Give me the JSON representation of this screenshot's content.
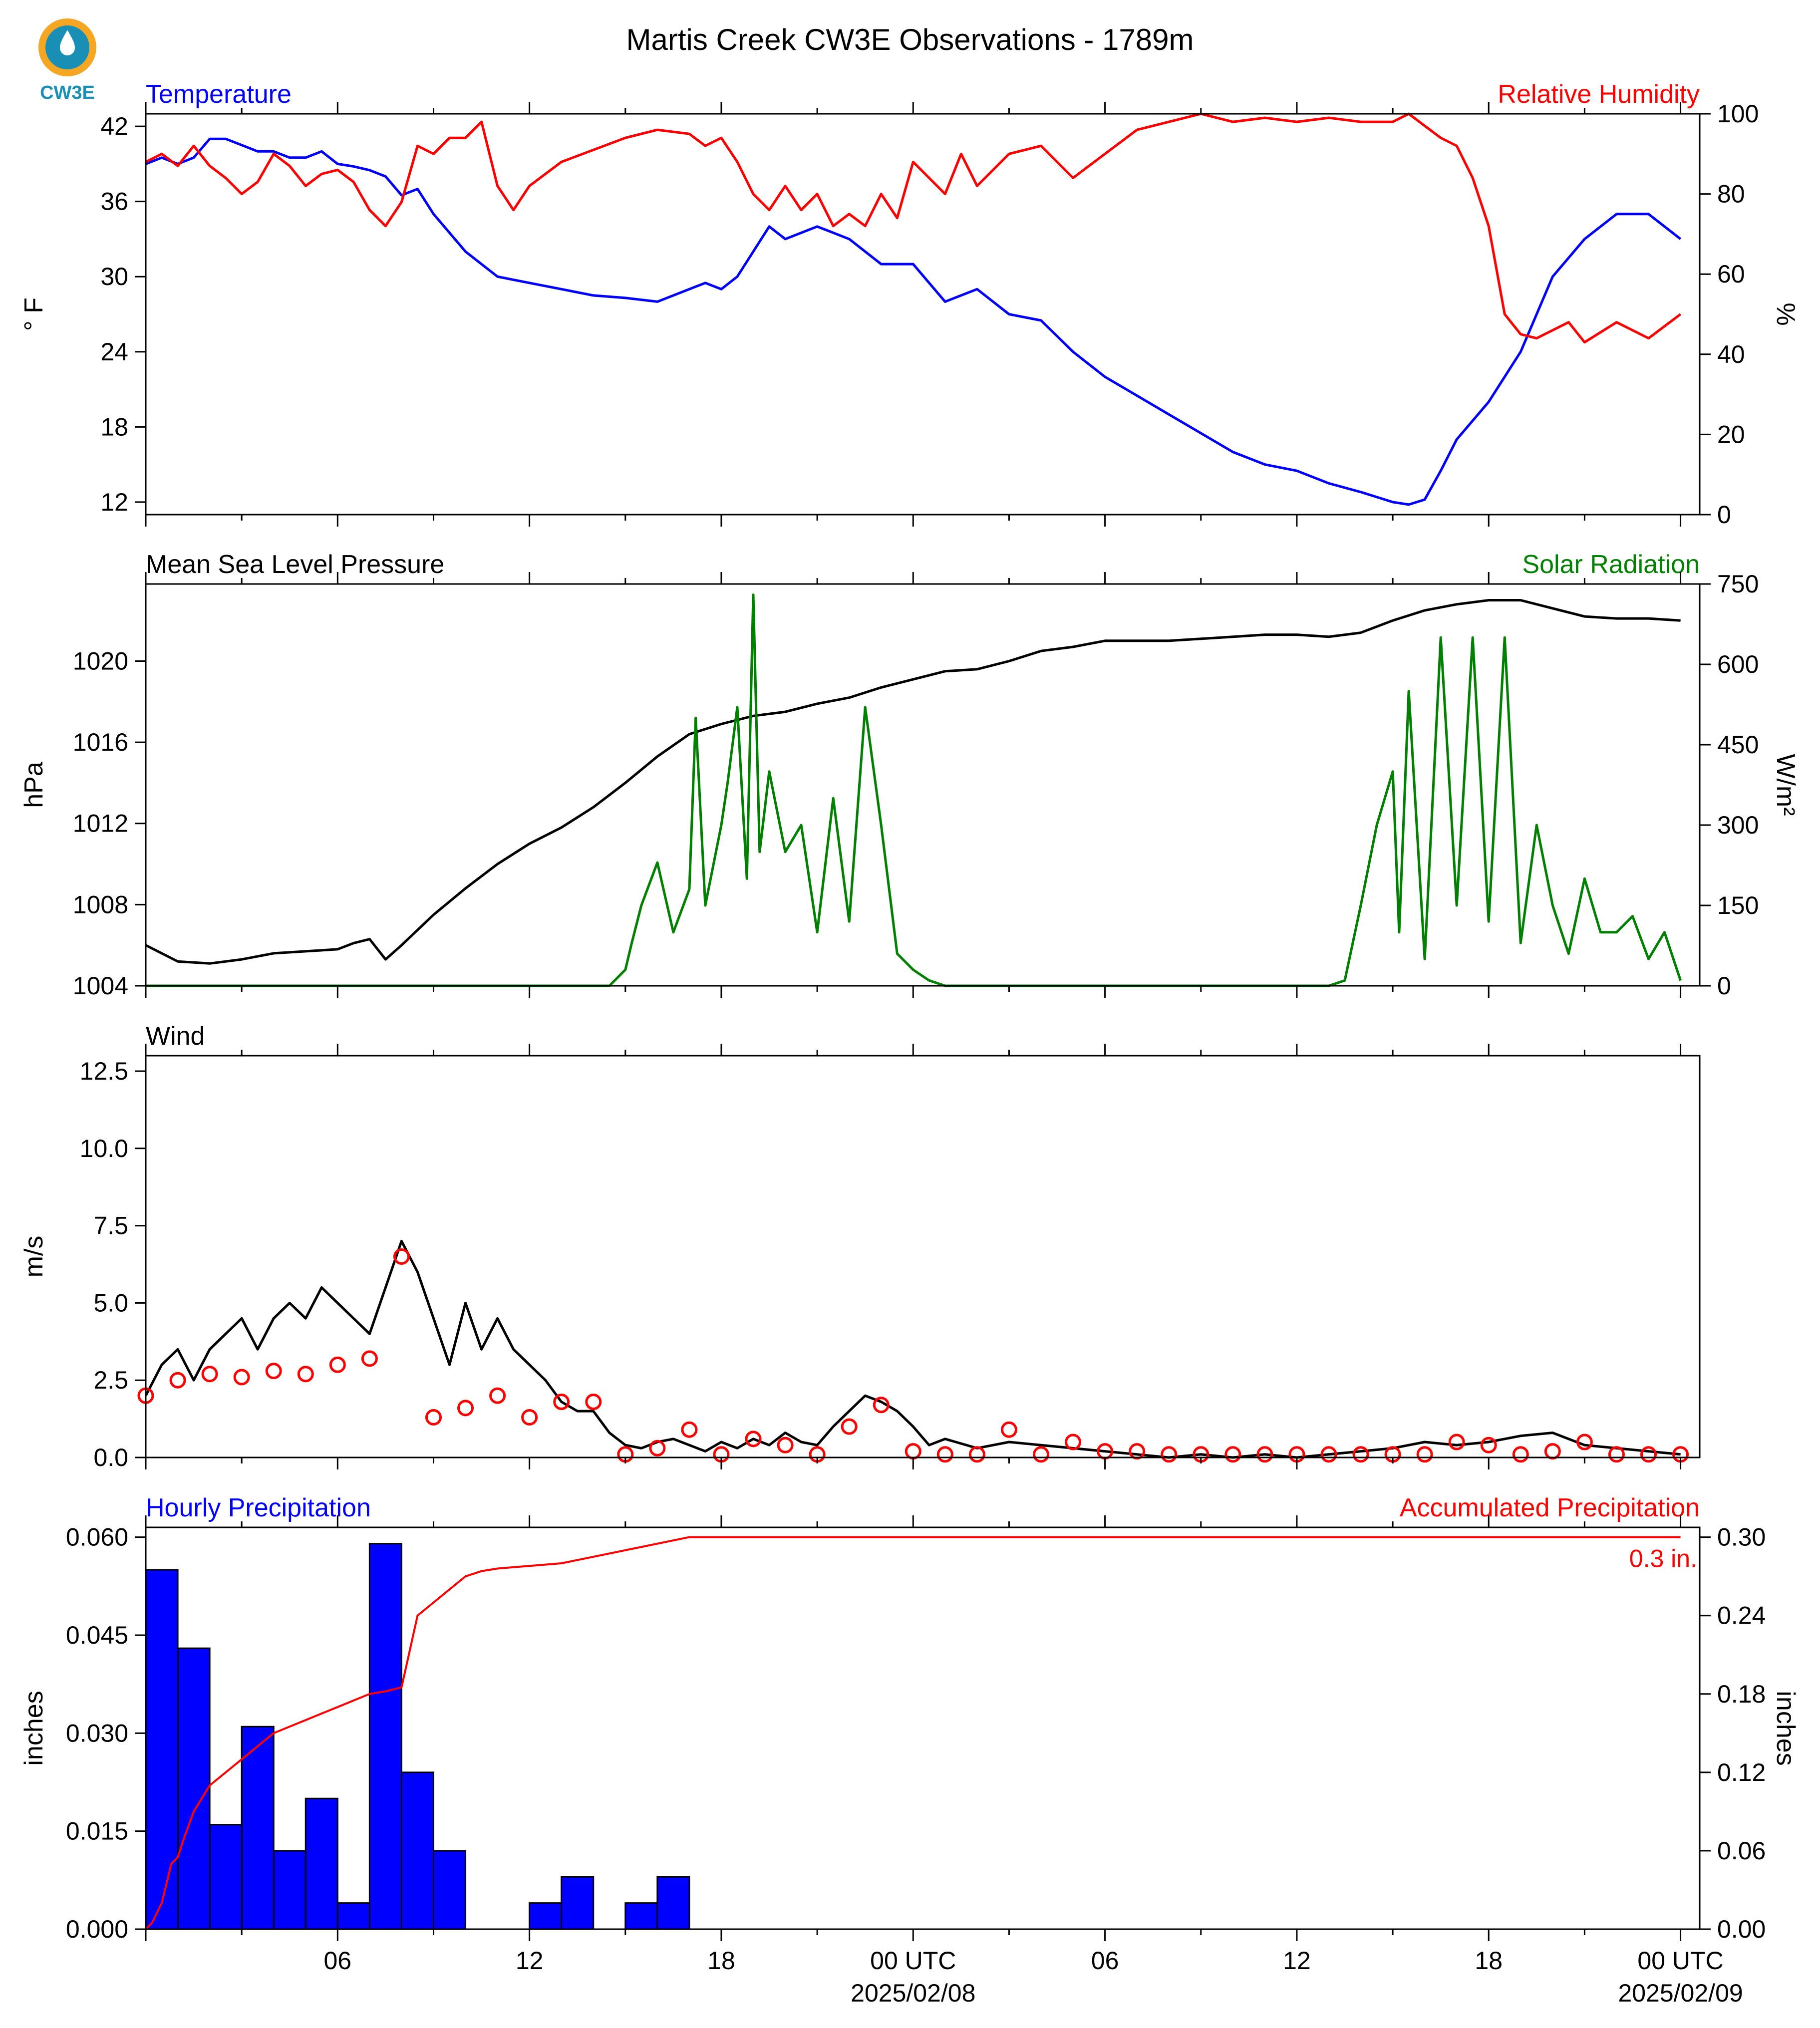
{
  "title": "Martis Creek CW3E Observations - 1789m",
  "logo": {
    "text": "CW3E",
    "colors": {
      "sun": "#f5a623",
      "water": "#1a8fb5"
    }
  },
  "colors": {
    "blue": "#0000ff",
    "red": "#ff0000",
    "green": "#008000",
    "black": "#000000"
  },
  "x_axis": {
    "hour_ticks": [
      "06",
      "12",
      "18",
      "00 UTC",
      "06",
      "12",
      "18",
      "00 UTC"
    ],
    "date_labels": [
      "2025/02/08",
      "2025/02/09"
    ]
  },
  "chart_data": [
    {
      "type": "line",
      "panel": "temperature-humidity",
      "title_left": "Temperature",
      "title_right": "Relative Humidity",
      "ylabel_left": "° F",
      "ylabel_right": "%",
      "ylim_left": [
        11,
        43
      ],
      "ylim_right": [
        0,
        100
      ],
      "yticks_left": [
        "12",
        "18",
        "24",
        "30",
        "36",
        "42"
      ],
      "yticks_right": [
        "0",
        "20",
        "40",
        "60",
        "80",
        "100"
      ],
      "series": [
        {
          "axis": "left",
          "color": "#0000ff",
          "x": [
            0,
            0.5,
            1,
            1.5,
            2,
            2.5,
            3,
            3.5,
            4,
            4.5,
            5,
            5.5,
            6,
            6.5,
            7,
            7.5,
            8,
            8.5,
            9,
            9.5,
            10,
            11,
            12,
            13,
            14,
            15,
            16,
            17,
            17.5,
            18,
            18.5,
            19,
            19.5,
            20,
            21,
            22,
            23,
            24,
            25,
            26,
            27,
            28,
            29,
            30,
            31,
            32,
            33,
            34,
            35,
            36,
            37,
            38,
            39,
            39.5,
            40,
            40.5,
            41,
            42,
            43,
            44,
            45,
            46,
            47,
            48
          ],
          "values": [
            39,
            39.5,
            39,
            39.5,
            41,
            41,
            40.5,
            40,
            40,
            39.5,
            39.5,
            40,
            39,
            38.8,
            38.5,
            38,
            36.5,
            37,
            35,
            33.5,
            32,
            30,
            29.5,
            29,
            28.5,
            28.3,
            28,
            29,
            29.5,
            29,
            30,
            32,
            34,
            33,
            34,
            33,
            31,
            31,
            28,
            29,
            27,
            26.5,
            24,
            22,
            20.5,
            19,
            17.5,
            16,
            15,
            14.5,
            13.5,
            12.8,
            12,
            11.8,
            12.2,
            14.5,
            17,
            20,
            24,
            30,
            33,
            35,
            35,
            33
          ]
        },
        {
          "axis": "right",
          "color": "#ff0000",
          "x": [
            0,
            0.5,
            1,
            1.5,
            2,
            2.5,
            3,
            3.5,
            4,
            4.5,
            5,
            5.5,
            6,
            6.5,
            7,
            7.5,
            8,
            8.5,
            9,
            9.5,
            10,
            10.5,
            11,
            11.5,
            12,
            13,
            14,
            15,
            16,
            17,
            17.5,
            18,
            18.5,
            19,
            19.5,
            20,
            20.5,
            21,
            21.5,
            22,
            22.5,
            23,
            23.5,
            24,
            24.5,
            25,
            25.5,
            26,
            27,
            28,
            29,
            30,
            31,
            32,
            33,
            34,
            35,
            36,
            37,
            38,
            39,
            39.5,
            40,
            40.5,
            41,
            41.5,
            42,
            42.5,
            43,
            43.5,
            44,
            44.5,
            45,
            46,
            47,
            48
          ],
          "values": [
            88,
            90,
            87,
            92,
            87,
            84,
            80,
            83,
            90,
            87,
            82,
            85,
            86,
            83,
            76,
            72,
            78,
            92,
            90,
            94,
            94,
            98,
            82,
            76,
            82,
            88,
            91,
            94,
            96,
            95,
            92,
            94,
            88,
            80,
            76,
            82,
            76,
            80,
            72,
            75,
            72,
            80,
            74,
            88,
            84,
            80,
            90,
            82,
            90,
            92,
            84,
            90,
            96,
            98,
            100,
            98,
            99,
            98,
            99,
            98,
            98,
            100,
            97,
            94,
            92,
            84,
            72,
            50,
            45,
            44,
            46,
            48,
            43,
            48,
            44,
            50
          ]
        }
      ]
    },
    {
      "type": "line",
      "panel": "pressure-solar",
      "title_left": "Mean Sea Level Pressure",
      "title_right": "Solar Radiation",
      "ylabel_left": "hPa",
      "ylabel_right": "W/m²",
      "ylim_left": [
        1004,
        1023.8
      ],
      "ylim_right": [
        0,
        750
      ],
      "yticks_left": [
        "1004",
        "1008",
        "1012",
        "1016",
        "1020"
      ],
      "yticks_right": [
        "0",
        "150",
        "300",
        "450",
        "600",
        "750"
      ],
      "series": [
        {
          "axis": "left",
          "color": "#000000",
          "x": [
            0,
            1,
            2,
            3,
            4,
            5,
            6,
            6.5,
            7,
            7.5,
            8,
            9,
            10,
            11,
            12,
            13,
            14,
            15,
            16,
            17,
            18,
            19,
            20,
            21,
            22,
            23,
            24,
            25,
            26,
            27,
            28,
            29,
            30,
            31,
            32,
            33,
            34,
            35,
            36,
            37,
            38,
            39,
            40,
            41,
            42,
            43,
            44,
            45,
            46,
            47,
            48
          ],
          "values": [
            1006,
            1005.2,
            1005.1,
            1005.3,
            1005.6,
            1005.7,
            1005.8,
            1006.1,
            1006.3,
            1005.3,
            1006.0,
            1007.5,
            1008.8,
            1010.0,
            1011.0,
            1011.8,
            1012.8,
            1014.0,
            1015.3,
            1016.4,
            1016.9,
            1017.3,
            1017.5,
            1017.9,
            1018.2,
            1018.7,
            1019.1,
            1019.5,
            1019.6,
            1020.0,
            1020.5,
            1020.7,
            1021.0,
            1021.0,
            1021.0,
            1021.1,
            1021.2,
            1021.3,
            1021.3,
            1021.2,
            1021.4,
            1022.0,
            1022.5,
            1022.8,
            1023.0,
            1023.0,
            1022.6,
            1022.2,
            1022.1,
            1022.1,
            1022.0
          ]
        },
        {
          "axis": "right",
          "color": "#008000",
          "x": [
            0,
            14,
            14.5,
            15,
            15.2,
            15.5,
            16,
            16.5,
            17,
            17.2,
            17.5,
            18,
            18.2,
            18.5,
            18.8,
            19,
            19.2,
            19.5,
            20,
            20.5,
            21,
            21.5,
            22,
            22.5,
            23,
            23.5,
            24,
            24.5,
            25,
            26,
            36,
            37,
            37.5,
            38,
            38.5,
            39,
            39.2,
            39.5,
            40,
            40.5,
            41,
            41.5,
            42,
            42.5,
            43,
            43.5,
            44,
            44.5,
            45,
            45.5,
            46,
            46.5,
            47,
            47.5,
            48
          ],
          "values": [
            0,
            0,
            0,
            30,
            80,
            150,
            230,
            100,
            180,
            500,
            150,
            300,
            380,
            520,
            200,
            730,
            250,
            400,
            250,
            300,
            100,
            350,
            120,
            520,
            300,
            60,
            30,
            10,
            0,
            0,
            0,
            0,
            10,
            150,
            300,
            400,
            100,
            550,
            50,
            650,
            150,
            650,
            120,
            650,
            80,
            300,
            150,
            60,
            200,
            100,
            100,
            130,
            50,
            100,
            10
          ]
        }
      ]
    },
    {
      "type": "line",
      "panel": "wind",
      "title_left": "Wind",
      "ylabel_left": "m/s",
      "ylim_left": [
        0,
        13
      ],
      "yticks_left": [
        "0.0",
        "2.5",
        "5.0",
        "7.5",
        "10.0",
        "12.5"
      ],
      "series": [
        {
          "axis": "left",
          "color": "#000000",
          "x": [
            0,
            0.5,
            1,
            1.5,
            2,
            2.5,
            3,
            3.5,
            4,
            4.5,
            5,
            5.5,
            6,
            6.5,
            7,
            7.5,
            8,
            8.5,
            9,
            9.5,
            10,
            10.5,
            11,
            11.5,
            12,
            12.5,
            13,
            13.5,
            14,
            14.5,
            15,
            15.5,
            16,
            16.5,
            17,
            17.5,
            18,
            18.5,
            19,
            19.5,
            20,
            20.5,
            21,
            21.5,
            22,
            22.5,
            23,
            23.5,
            24,
            24.5,
            25,
            26,
            27,
            28,
            29,
            30,
            31,
            32,
            33,
            34,
            35,
            36,
            37,
            38,
            39,
            40,
            41,
            42,
            43,
            44,
            45,
            46,
            47,
            48
          ],
          "values": [
            2.0,
            3.0,
            3.5,
            2.5,
            3.5,
            4.0,
            4.5,
            3.5,
            4.5,
            5.0,
            4.5,
            5.5,
            5.0,
            4.5,
            4.0,
            5.5,
            7.0,
            6.0,
            4.5,
            3.0,
            5.0,
            3.5,
            4.5,
            3.5,
            3.0,
            2.5,
            1.8,
            1.5,
            1.5,
            0.8,
            0.4,
            0.3,
            0.5,
            0.6,
            0.4,
            0.2,
            0.5,
            0.3,
            0.6,
            0.4,
            0.8,
            0.5,
            0.4,
            1.0,
            1.5,
            2.0,
            1.8,
            1.5,
            1.0,
            0.4,
            0.6,
            0.3,
            0.5,
            0.4,
            0.3,
            0.2,
            0.1,
            0.0,
            0.1,
            0.0,
            0.1,
            0.0,
            0.1,
            0.2,
            0.3,
            0.5,
            0.4,
            0.5,
            0.7,
            0.8,
            0.4,
            0.3,
            0.2,
            0.1
          ]
        },
        {
          "axis": "left",
          "color": "#ff0000",
          "kind": "markers",
          "x": [
            0,
            1,
            2,
            3,
            4,
            5,
            6,
            7,
            8,
            9,
            10,
            11,
            12,
            13,
            14,
            15,
            16,
            17,
            18,
            19,
            20,
            21,
            22,
            23,
            24,
            25,
            26,
            27,
            28,
            29,
            30,
            31,
            32,
            33,
            34,
            35,
            36,
            37,
            38,
            39,
            40,
            41,
            42,
            43,
            44,
            45,
            46,
            47,
            48
          ],
          "values": [
            2.0,
            2.5,
            2.7,
            2.6,
            2.8,
            2.7,
            3.0,
            3.2,
            6.5,
            1.3,
            1.6,
            2.0,
            1.3,
            1.8,
            1.8,
            0.1,
            0.3,
            0.9,
            0.1,
            0.6,
            0.4,
            0.1,
            1.0,
            1.7,
            0.2,
            0.1,
            0.1,
            0.9,
            0.1,
            0.5,
            0.2,
            0.2,
            0.1,
            0.1,
            0.1,
            0.1,
            0.1,
            0.1,
            0.1,
            0.1,
            0.1,
            0.5,
            0.4,
            0.1,
            0.2,
            0.5,
            0.1,
            0.1,
            0.1
          ]
        }
      ]
    },
    {
      "type": "bar",
      "panel": "precipitation",
      "title_left": "Hourly Precipitation",
      "title_right": "Accumulated Precipitation",
      "ylabel_left": "inches",
      "ylabel_right": "inches",
      "ylim_left": [
        0,
        0.0615
      ],
      "ylim_right": [
        0,
        0.3075
      ],
      "yticks_left": [
        "0.000",
        "0.015",
        "0.030",
        "0.045",
        "0.060"
      ],
      "yticks_right": [
        "0.00",
        "0.06",
        "0.12",
        "0.18",
        "0.24",
        "0.30"
      ],
      "annotation": "0.3 in.",
      "bar_color": "#0000ff",
      "bars": [
        0.055,
        0.043,
        0.016,
        0.031,
        0.012,
        0.02,
        0.004,
        0.059,
        0.024,
        0.012,
        0,
        0,
        0.004,
        0.008,
        0,
        0.004,
        0.008,
        0,
        0,
        0,
        0,
        0,
        0,
        0,
        0,
        0,
        0,
        0,
        0,
        0,
        0,
        0,
        0,
        0,
        0,
        0,
        0,
        0,
        0,
        0,
        0,
        0,
        0,
        0,
        0,
        0,
        0,
        0
      ],
      "accum": {
        "color": "#ff0000",
        "x": [
          0,
          0.2,
          0.5,
          0.8,
          1,
          1.2,
          1.5,
          2,
          2.5,
          3,
          3.5,
          4,
          4.5,
          5,
          5.5,
          6,
          6.5,
          7,
          7.5,
          8,
          8.5,
          9,
          9.5,
          10,
          10.5,
          11,
          12,
          13,
          14,
          15,
          16,
          17,
          18,
          48
        ],
        "values": [
          0,
          0.005,
          0.02,
          0.05,
          0.055,
          0.07,
          0.09,
          0.11,
          0.12,
          0.13,
          0.14,
          0.15,
          0.155,
          0.16,
          0.165,
          0.17,
          0.175,
          0.18,
          0.182,
          0.185,
          0.24,
          0.25,
          0.26,
          0.27,
          0.274,
          0.276,
          0.278,
          0.28,
          0.285,
          0.29,
          0.295,
          0.3,
          0.3,
          0.3
        ]
      }
    }
  ]
}
